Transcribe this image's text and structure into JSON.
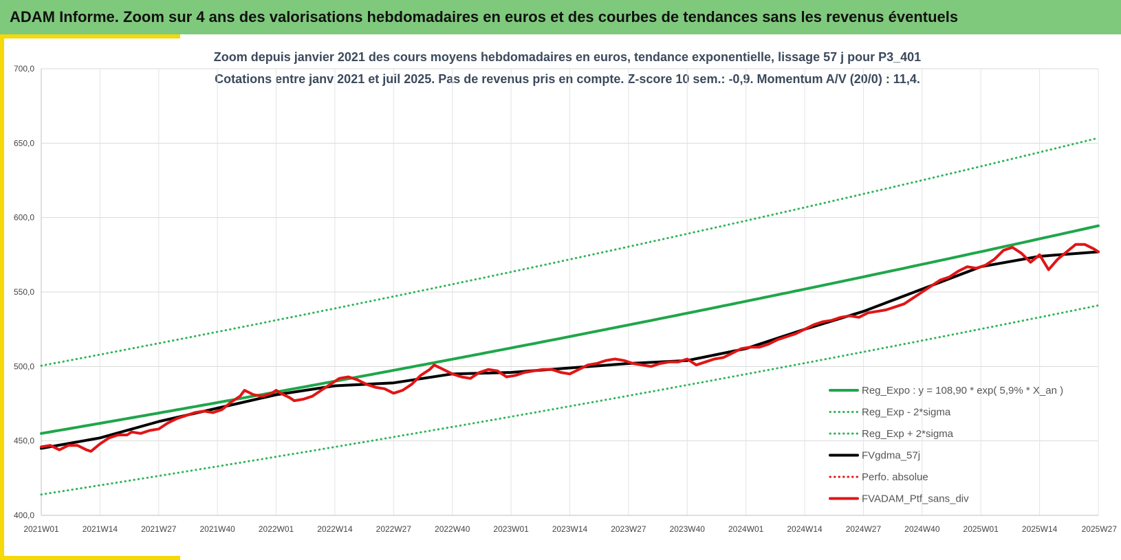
{
  "header": {
    "title": "ADAM Informe. Zoom sur 4 ans des valorisations hebdomadaires en euros et des courbes de tendances sans les revenus éventuels"
  },
  "colors": {
    "banner": "#7fc97c",
    "accent_yellow": "#f5d90a",
    "trend": "#1fa64a",
    "band": "#2db457",
    "mma": "#000000",
    "perf": "#e11515"
  },
  "chart_data": {
    "type": "line",
    "title_line1": "Zoom depuis janvier 2021 des cours moyens hebdomadaires  en euros, tendance exponentielle, lissage 57 j pour P3_401",
    "title_line2": "Cotations entre janv 2021 et juil 2025. Pas de revenus pris en compte. Z-score 10 sem.: -0,9. Momentum A/V (20/0) : 11,4.",
    "ylim": [
      400,
      700
    ],
    "y_ticks": [
      "400,0",
      "450,0",
      "500,0",
      "550,0",
      "600,0",
      "650,0",
      "700,0"
    ],
    "x_ticks": [
      "2021W01",
      "2021W14",
      "2021W27",
      "2021W40",
      "2022W01",
      "2022W14",
      "2022W27",
      "2022W40",
      "2023W01",
      "2023W14",
      "2023W27",
      "2023W40",
      "2024W01",
      "2024W14",
      "2024W27",
      "2024W40",
      "2025W01",
      "2025W14",
      "2025W27"
    ],
    "x_range_weeks": [
      0,
      234
    ],
    "grid": "vertical-and-horizontal",
    "legend_position": "bottom-right",
    "legend": [
      {
        "label": "Reg_Expo : y = 108,90 * exp( 5,9% *  X_an )",
        "color": "#1fa64a",
        "style": "solid"
      },
      {
        "label": "Reg_Exp - 2*sigma",
        "color": "#2db457",
        "style": "dotted"
      },
      {
        "label": "Reg_Exp + 2*sigma",
        "color": "#2db457",
        "style": "dotted"
      },
      {
        "label": "FVgdma_57j",
        "color": "#000000",
        "style": "solid"
      },
      {
        "label": "Perfo. absolue",
        "color": "#e11515",
        "style": "dotted"
      },
      {
        "label": "FVADAM_Ptf_sans_div",
        "color": "#e11515",
        "style": "solid"
      }
    ],
    "series": [
      {
        "name": "Reg_Expo : y = 108,90 * exp( 5,9% *  X_an )",
        "weeks": [
          0,
          234
        ],
        "start_value": 455.0,
        "end_value": 594.5,
        "shape": "exponential"
      },
      {
        "name": "Reg_Exp - 2*sigma",
        "weeks": [
          0,
          234
        ],
        "start_value": 414.0,
        "end_value": 541.0,
        "shape": "exponential"
      },
      {
        "name": "Reg_Exp + 2*sigma",
        "weeks": [
          0,
          234
        ],
        "start_value": 500.5,
        "end_value": 653.5,
        "shape": "exponential"
      },
      {
        "name": "FVgdma_57j",
        "points": [
          [
            0,
            445
          ],
          [
            13,
            452
          ],
          [
            26,
            463
          ],
          [
            39,
            472
          ],
          [
            52,
            481
          ],
          [
            65,
            487
          ],
          [
            78,
            489
          ],
          [
            91,
            495
          ],
          [
            104,
            496
          ],
          [
            117,
            499
          ],
          [
            130,
            502
          ],
          [
            143,
            504
          ],
          [
            156,
            512
          ],
          [
            169,
            525
          ],
          [
            182,
            537
          ],
          [
            195,
            552
          ],
          [
            208,
            567
          ],
          [
            221,
            574
          ],
          [
            234,
            577
          ]
        ]
      },
      {
        "name": "FVADAM_Ptf_sans_div",
        "points": [
          [
            0,
            446
          ],
          [
            2,
            447
          ],
          [
            4,
            444
          ],
          [
            6,
            447
          ],
          [
            8,
            447
          ],
          [
            10,
            444
          ],
          [
            11,
            443
          ],
          [
            13,
            448
          ],
          [
            15,
            452
          ],
          [
            17,
            454
          ],
          [
            19,
            454
          ],
          [
            20,
            456
          ],
          [
            22,
            455
          ],
          [
            24,
            457
          ],
          [
            26,
            458
          ],
          [
            28,
            462
          ],
          [
            30,
            465
          ],
          [
            32,
            467
          ],
          [
            34,
            469
          ],
          [
            36,
            470
          ],
          [
            38,
            469
          ],
          [
            40,
            471
          ],
          [
            42,
            476
          ],
          [
            44,
            480
          ],
          [
            45,
            484
          ],
          [
            47,
            481
          ],
          [
            49,
            480
          ],
          [
            51,
            482
          ],
          [
            52,
            484
          ],
          [
            53,
            482
          ],
          [
            55,
            479
          ],
          [
            56,
            477
          ],
          [
            58,
            478
          ],
          [
            60,
            480
          ],
          [
            62,
            484
          ],
          [
            64,
            488
          ],
          [
            66,
            492
          ],
          [
            68,
            493
          ],
          [
            70,
            491
          ],
          [
            72,
            488
          ],
          [
            74,
            486
          ],
          [
            76,
            485
          ],
          [
            78,
            482
          ],
          [
            80,
            484
          ],
          [
            82,
            488
          ],
          [
            84,
            494
          ],
          [
            86,
            498
          ],
          [
            87,
            501
          ],
          [
            89,
            498
          ],
          [
            91,
            495
          ],
          [
            93,
            493
          ],
          [
            95,
            492
          ],
          [
            97,
            496
          ],
          [
            99,
            498
          ],
          [
            101,
            497
          ],
          [
            103,
            493
          ],
          [
            105,
            494
          ],
          [
            107,
            496
          ],
          [
            109,
            497
          ],
          [
            111,
            498
          ],
          [
            113,
            498
          ],
          [
            115,
            496
          ],
          [
            117,
            495
          ],
          [
            119,
            498
          ],
          [
            121,
            501
          ],
          [
            123,
            502
          ],
          [
            125,
            504
          ],
          [
            127,
            505
          ],
          [
            129,
            504
          ],
          [
            131,
            502
          ],
          [
            133,
            501
          ],
          [
            135,
            500
          ],
          [
            137,
            502
          ],
          [
            139,
            503
          ],
          [
            141,
            503
          ],
          [
            143,
            505
          ],
          [
            145,
            501
          ],
          [
            147,
            503
          ],
          [
            149,
            505
          ],
          [
            151,
            506
          ],
          [
            153,
            509
          ],
          [
            155,
            512
          ],
          [
            157,
            513
          ],
          [
            159,
            513
          ],
          [
            161,
            515
          ],
          [
            163,
            518
          ],
          [
            165,
            520
          ],
          [
            167,
            522
          ],
          [
            169,
            525
          ],
          [
            171,
            528
          ],
          [
            173,
            530
          ],
          [
            175,
            531
          ],
          [
            177,
            533
          ],
          [
            179,
            534
          ],
          [
            181,
            533
          ],
          [
            183,
            536
          ],
          [
            185,
            537
          ],
          [
            187,
            538
          ],
          [
            189,
            540
          ],
          [
            191,
            542
          ],
          [
            193,
            546
          ],
          [
            195,
            550
          ],
          [
            197,
            554
          ],
          [
            199,
            558
          ],
          [
            201,
            560
          ],
          [
            203,
            564
          ],
          [
            205,
            567
          ],
          [
            207,
            566
          ],
          [
            209,
            568
          ],
          [
            211,
            572
          ],
          [
            213,
            578
          ],
          [
            215,
            580
          ],
          [
            217,
            576
          ],
          [
            219,
            570
          ],
          [
            221,
            575
          ],
          [
            223,
            565
          ],
          [
            225,
            572
          ],
          [
            227,
            577
          ],
          [
            229,
            582
          ],
          [
            231,
            582
          ],
          [
            233,
            579
          ],
          [
            234,
            577
          ]
        ]
      }
    ]
  }
}
